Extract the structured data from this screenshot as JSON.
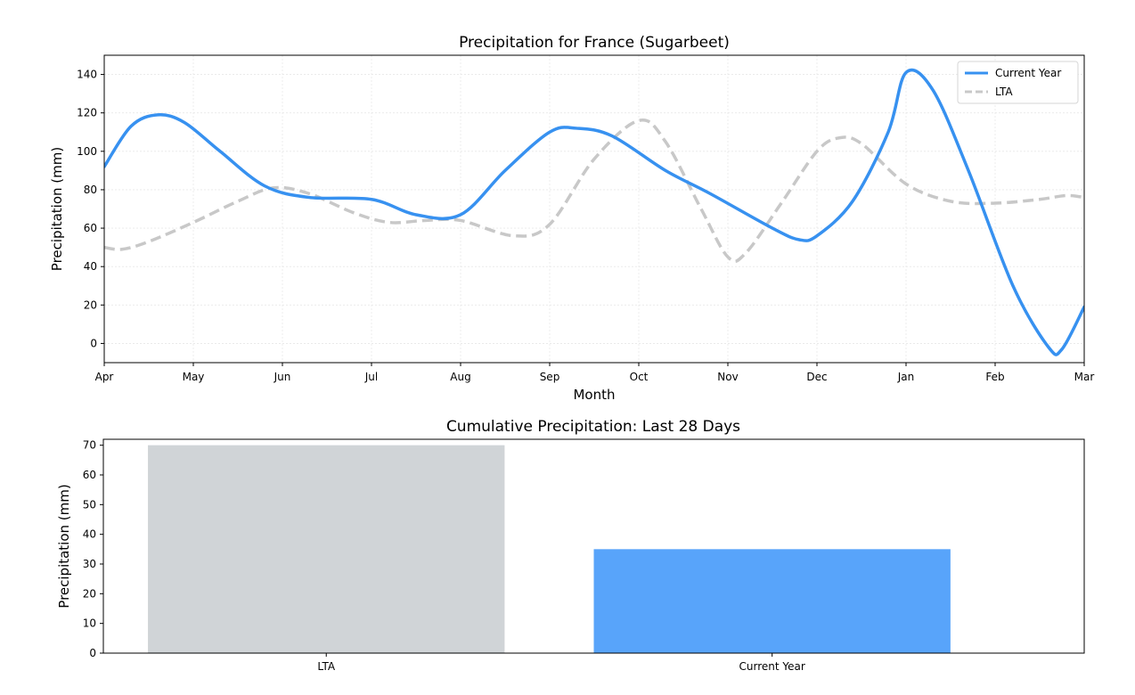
{
  "colors": {
    "current_year_line": "#3791f0",
    "lta_line": "#c8c8c8",
    "lta_bar": "#d0d4d7",
    "current_year_bar": "#58a4fa",
    "grid": "#e8e8e8"
  },
  "chart_data": [
    {
      "type": "line",
      "title": "Precipitation for France (Sugarbeet)",
      "xlabel": "Month",
      "ylabel": "Precipitation (mm)",
      "categories": [
        "Apr",
        "May",
        "Jun",
        "Jul",
        "Aug",
        "Sep",
        "Oct",
        "Nov",
        "Dec",
        "Jan",
        "Feb",
        "Mar"
      ],
      "xlim": [
        0,
        11
      ],
      "ylim": [
        -10,
        150
      ],
      "yticks": [
        0,
        20,
        40,
        60,
        80,
        100,
        120,
        140
      ],
      "grid": true,
      "legend_position": "top-right",
      "series": [
        {
          "name": "Current Year",
          "style": "solid",
          "points": [
            [
              0,
              92
            ],
            [
              0.3,
              113
            ],
            [
              0.6,
              119
            ],
            [
              0.9,
              115
            ],
            [
              1.3,
              100
            ],
            [
              1.8,
              82
            ],
            [
              2.3,
              76
            ],
            [
              3.0,
              75
            ],
            [
              3.5,
              67
            ],
            [
              4.0,
              67
            ],
            [
              4.5,
              90
            ],
            [
              5.0,
              110
            ],
            [
              5.3,
              112
            ],
            [
              5.7,
              108
            ],
            [
              6.3,
              90
            ],
            [
              6.8,
              78
            ],
            [
              7.5,
              60
            ],
            [
              7.8,
              54
            ],
            [
              8.0,
              56
            ],
            [
              8.4,
              74
            ],
            [
              8.8,
              110
            ],
            [
              9.0,
              141
            ],
            [
              9.3,
              132
            ],
            [
              9.7,
              90
            ],
            [
              10.2,
              30
            ],
            [
              10.6,
              -2
            ],
            [
              10.75,
              -3
            ],
            [
              11.0,
              19
            ]
          ]
        },
        {
          "name": "LTA",
          "style": "dashed",
          "points": [
            [
              0,
              50
            ],
            [
              0.2,
              49
            ],
            [
              0.5,
              53
            ],
            [
              1.0,
              63
            ],
            [
              1.5,
              74
            ],
            [
              1.9,
              81
            ],
            [
              2.3,
              78
            ],
            [
              2.8,
              68
            ],
            [
              3.2,
              63
            ],
            [
              3.6,
              64
            ],
            [
              4.0,
              64
            ],
            [
              4.6,
              56
            ],
            [
              5.0,
              62
            ],
            [
              5.5,
              96
            ],
            [
              6.0,
              116
            ],
            [
              6.3,
              105
            ],
            [
              6.7,
              70
            ],
            [
              7.0,
              45
            ],
            [
              7.2,
              47
            ],
            [
              7.6,
              73
            ],
            [
              8.0,
              100
            ],
            [
              8.25,
              107
            ],
            [
              8.5,
              104
            ],
            [
              9.0,
              83
            ],
            [
              9.5,
              74
            ],
            [
              10.0,
              73
            ],
            [
              10.5,
              75
            ],
            [
              10.8,
              77
            ],
            [
              11.0,
              76
            ]
          ]
        }
      ]
    },
    {
      "type": "bar",
      "title": "Cumulative Precipitation: Last 28 Days",
      "xlabel": "",
      "ylabel": "Precipitation (mm)",
      "categories": [
        "LTA",
        "Current Year"
      ],
      "values": [
        70,
        35
      ],
      "ylim": [
        0,
        72
      ],
      "yticks": [
        0,
        10,
        20,
        30,
        40,
        50,
        60,
        70
      ],
      "grid": false
    }
  ]
}
